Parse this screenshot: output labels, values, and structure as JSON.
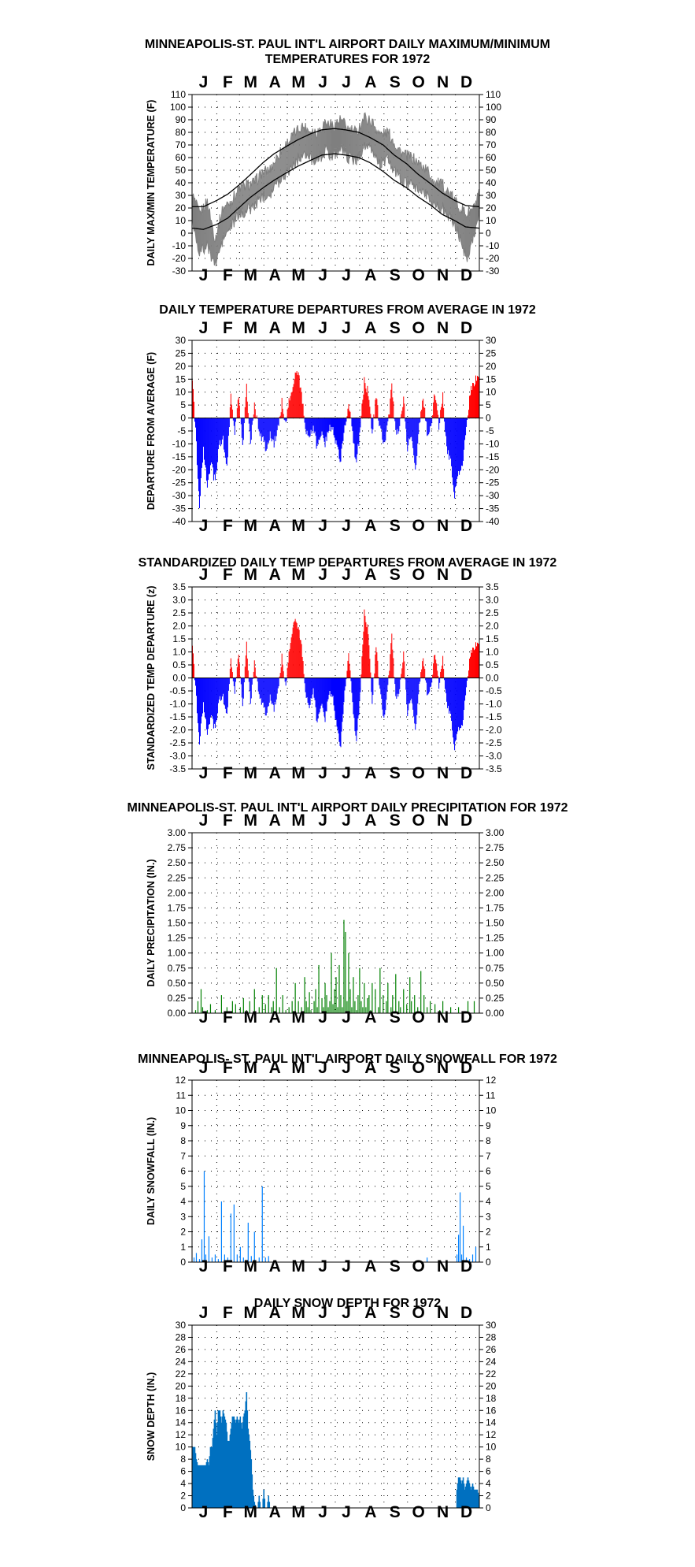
{
  "colors": {
    "temp_series": "#7f7f7f",
    "normal_line": "#000000",
    "positive": "#ff0000",
    "negative": "#0000ff",
    "precip": "#008000",
    "snowfall": "#0080ff",
    "snowdepth": "#0070c0",
    "grid": "#000000"
  },
  "months": [
    "J",
    "F",
    "M",
    "A",
    "M",
    "J",
    "J",
    "A",
    "S",
    "O",
    "N",
    "D"
  ],
  "chart_data": [
    {
      "id": "temps",
      "type": "line",
      "title": "MINNEAPOLIS-ST. PAUL INT'L AIRPORT DAILY MAXIMUM/MINIMUM\nTEMPERATURES FOR 1972",
      "ylabel": "DAILY MAX/MIN TEMPERATURE (F)",
      "ylim": [
        -30,
        110
      ],
      "ystep": 10,
      "decimals": 0,
      "grid": true,
      "x": "day of year 1972 (1-366)",
      "series": [
        {
          "role": "daily max/min",
          "key_days": [
            1,
            10,
            20,
            30,
            40,
            50,
            60,
            70,
            80,
            90,
            100,
            110,
            120,
            130,
            140,
            150,
            160,
            170,
            180,
            190,
            200,
            210,
            220,
            230,
            240,
            250,
            260,
            270,
            280,
            290,
            300,
            310,
            320,
            330,
            340,
            350,
            360,
            366
          ],
          "max": [
            30,
            15,
            25,
            -5,
            20,
            25,
            35,
            38,
            40,
            48,
            50,
            62,
            70,
            78,
            85,
            82,
            80,
            88,
            85,
            90,
            82,
            80,
            92,
            88,
            78,
            80,
            70,
            62,
            60,
            55,
            50,
            40,
            38,
            30,
            22,
            15,
            20,
            30
          ],
          "min": [
            10,
            -15,
            -10,
            -25,
            -5,
            5,
            15,
            18,
            22,
            30,
            32,
            40,
            48,
            55,
            62,
            60,
            58,
            65,
            62,
            68,
            60,
            58,
            70,
            65,
            55,
            58,
            48,
            40,
            38,
            35,
            30,
            22,
            20,
            12,
            0,
            -20,
            0,
            15
          ]
        },
        {
          "role": "normal max",
          "key_days": [
            1,
            15,
            32,
            46,
            60,
            74,
            91,
            105,
            121,
            135,
            152,
            166,
            182,
            196,
            213,
            227,
            244,
            258,
            274,
            288,
            305,
            319,
            335,
            349,
            366
          ],
          "values": [
            21,
            21,
            26,
            31,
            38,
            46,
            56,
            63,
            69,
            74,
            79,
            82,
            83,
            82,
            80,
            76,
            70,
            62,
            55,
            47,
            39,
            32,
            26,
            22,
            21
          ]
        },
        {
          "role": "normal min",
          "key_days": [
            1,
            15,
            32,
            46,
            60,
            74,
            91,
            105,
            121,
            135,
            152,
            166,
            182,
            196,
            213,
            227,
            244,
            258,
            274,
            288,
            305,
            319,
            335,
            349,
            366
          ],
          "values": [
            4,
            3,
            7,
            12,
            20,
            28,
            36,
            42,
            48,
            53,
            58,
            62,
            63,
            62,
            60,
            56,
            49,
            42,
            36,
            29,
            22,
            15,
            10,
            5,
            4
          ]
        }
      ]
    },
    {
      "id": "dep",
      "type": "bar",
      "title": "DAILY TEMPERATURE DEPARTURES FROM AVERAGE IN 1972",
      "ylabel": "DEPARTURE FROM AVERAGE (F)",
      "ylim": [
        -40,
        30
      ],
      "ystep": 5,
      "decimals": 0,
      "grid": true,
      "key_days": [
        1,
        5,
        10,
        15,
        20,
        25,
        30,
        35,
        40,
        45,
        50,
        55,
        60,
        65,
        70,
        75,
        80,
        85,
        90,
        95,
        100,
        105,
        110,
        115,
        120,
        125,
        130,
        135,
        140,
        145,
        150,
        155,
        160,
        165,
        170,
        175,
        180,
        185,
        190,
        195,
        200,
        205,
        210,
        215,
        220,
        225,
        230,
        235,
        240,
        245,
        250,
        255,
        260,
        265,
        270,
        275,
        280,
        285,
        290,
        295,
        300,
        305,
        310,
        315,
        320,
        325,
        330,
        335,
        340,
        345,
        350,
        355,
        360,
        366
      ],
      "values": [
        14,
        -5,
        -34,
        -12,
        -27,
        -18,
        -25,
        -10,
        -8,
        -20,
        10,
        -5,
        8,
        -12,
        12,
        -10,
        5,
        -4,
        -8,
        -12,
        -6,
        -10,
        -4,
        6,
        -3,
        8,
        14,
        18,
        10,
        -5,
        -8,
        -3,
        -12,
        -6,
        -10,
        -3,
        -5,
        -12,
        -16,
        -3,
        6,
        -6,
        -18,
        -3,
        14,
        10,
        -6,
        8,
        -4,
        -10,
        -3,
        12,
        -6,
        -4,
        8,
        -12,
        -6,
        -20,
        -3,
        8,
        -6,
        -4,
        10,
        -3,
        8,
        -12,
        -16,
        -30,
        -22,
        -18,
        -4,
        10,
        14,
        17
      ]
    },
    {
      "id": "zdep",
      "type": "bar",
      "title": "STANDARDIZED DAILY TEMP DEPARTURES FROM AVERAGE IN 1972",
      "ylabel": "STANDARDIZED TEMP DEPARTURE (z)",
      "ylim": [
        -3.5,
        3.5
      ],
      "ystep": 0.5,
      "decimals": 1,
      "grid": true,
      "key_days": [
        1,
        5,
        10,
        15,
        20,
        25,
        30,
        35,
        40,
        45,
        50,
        55,
        60,
        65,
        70,
        75,
        80,
        85,
        90,
        95,
        100,
        105,
        110,
        115,
        120,
        125,
        130,
        135,
        140,
        145,
        150,
        155,
        160,
        165,
        170,
        175,
        180,
        185,
        190,
        195,
        200,
        205,
        210,
        215,
        220,
        225,
        230,
        235,
        240,
        245,
        250,
        255,
        260,
        265,
        270,
        275,
        280,
        285,
        290,
        295,
        300,
        305,
        310,
        315,
        320,
        325,
        330,
        335,
        340,
        345,
        350,
        355,
        360,
        366
      ],
      "values": [
        1.2,
        -0.4,
        -2.5,
        -1.0,
        -2.2,
        -1.5,
        -2.0,
        -0.8,
        -0.7,
        -1.5,
        0.8,
        -0.5,
        0.9,
        -1.2,
        1.3,
        -1.0,
        0.6,
        -0.5,
        -1.0,
        -1.4,
        -0.7,
        -1.2,
        -0.5,
        0.8,
        -0.4,
        1.2,
        2.2,
        2.0,
        1.3,
        -0.6,
        -1.2,
        -0.4,
        -1.8,
        -1.0,
        -1.6,
        -0.5,
        -0.8,
        -2.0,
        -2.6,
        -0.5,
        1.0,
        -1.0,
        -2.5,
        -0.5,
        2.5,
        1.8,
        -1.0,
        1.2,
        -0.5,
        -1.6,
        -0.4,
        1.6,
        -0.8,
        -0.5,
        1.0,
        -1.4,
        -0.7,
        -2.0,
        -0.3,
        0.8,
        -0.6,
        -0.4,
        1.0,
        -0.3,
        0.7,
        -1.0,
        -1.4,
        -2.7,
        -2.0,
        -1.8,
        -0.4,
        0.9,
        1.2,
        1.4
      ]
    },
    {
      "id": "precip",
      "type": "bar",
      "title": "MINNEAPOLIS-ST. PAUL INT'L AIRPORT DAILY PRECIPITATION FOR 1972",
      "ylabel": "DAILY PRECIPITATION (IN.)",
      "ylim": [
        0,
        3
      ],
      "ystep": 0.25,
      "decimals": 2,
      "grid": true,
      "days": [
        5,
        8,
        12,
        14,
        20,
        24,
        30,
        38,
        45,
        52,
        56,
        62,
        66,
        70,
        74,
        80,
        86,
        90,
        94,
        98,
        102,
        104,
        108,
        112,
        116,
        120,
        124,
        128,
        132,
        136,
        140,
        144,
        146,
        148,
        150,
        152,
        156,
        158,
        160,
        162,
        166,
        168,
        170,
        172,
        174,
        176,
        178,
        180,
        182,
        184,
        186,
        188,
        190,
        192,
        194,
        196,
        198,
        200,
        202,
        204,
        206,
        208,
        210,
        212,
        214,
        216,
        218,
        220,
        222,
        224,
        226,
        228,
        230,
        234,
        238,
        240,
        244,
        248,
        250,
        254,
        256,
        260,
        264,
        266,
        270,
        274,
        278,
        280,
        284,
        288,
        292,
        296,
        300,
        304,
        310,
        316,
        320,
        330,
        340,
        352,
        360
      ],
      "values": [
        0.05,
        0.2,
        0.4,
        0.1,
        0.05,
        0.15,
        0.05,
        0.3,
        0.1,
        0.2,
        0.15,
        0.1,
        0.25,
        0.05,
        0.2,
        0.4,
        0.1,
        0.3,
        0.15,
        0.3,
        0.1,
        0.2,
        0.75,
        0.1,
        0.3,
        0.05,
        0.1,
        0.2,
        0.5,
        0.2,
        0.1,
        0.6,
        0.2,
        0.1,
        0.35,
        0.05,
        0.2,
        0.4,
        0.1,
        0.8,
        0.25,
        0.1,
        0.5,
        0.3,
        0.1,
        0.2,
        1.0,
        0.15,
        0.4,
        0.6,
        0.1,
        0.8,
        0.3,
        0.1,
        1.55,
        1.35,
        0.2,
        1.0,
        0.4,
        0.1,
        0.6,
        0.2,
        0.05,
        0.3,
        0.75,
        0.2,
        0.1,
        0.5,
        0.1,
        0.25,
        0.3,
        0.05,
        0.5,
        0.4,
        0.1,
        0.75,
        0.3,
        0.2,
        0.5,
        0.1,
        0.3,
        0.65,
        0.2,
        0.1,
        0.4,
        0.15,
        0.6,
        0.2,
        0.3,
        0.1,
        0.7,
        0.3,
        0.1,
        0.2,
        0.15,
        0.05,
        0.2,
        0.1,
        0.1,
        0.2,
        0.2
      ]
    },
    {
      "id": "snow",
      "type": "bar",
      "title": "MINNEAPOLIS- ST. PAUL INT'L AIRPORT DAILY SNOWFALL FOR 1972",
      "ylabel": "DAILY SNOWFALL (IN.)",
      "ylim": [
        0,
        12
      ],
      "ystep": 1,
      "decimals": 0,
      "grid": true,
      "days": [
        3,
        6,
        10,
        13,
        16,
        18,
        22,
        26,
        30,
        34,
        38,
        42,
        46,
        50,
        54,
        58,
        62,
        66,
        72,
        76,
        80,
        86,
        90,
        94,
        98,
        300,
        338,
        340,
        342,
        344,
        346,
        350,
        354,
        358,
        362
      ],
      "values": [
        0.3,
        0.6,
        0.2,
        1.5,
        6.0,
        0.5,
        1.7,
        0.3,
        0.5,
        0.2,
        4.0,
        0.5,
        0.3,
        3.2,
        3.8,
        0.5,
        1.0,
        0.3,
        2.6,
        0.4,
        2.0,
        0.3,
        5.0,
        0.3,
        0.4,
        0.3,
        0.5,
        1.8,
        4.6,
        0.5,
        2.4,
        0.3,
        0.2,
        0.5,
        1.0
      ]
    },
    {
      "id": "depth",
      "type": "area",
      "title": "DAILY SNOW DEPTH FOR 1972",
      "ylabel": "SNOW DEPTH (IN.)",
      "ylim": [
        0,
        30
      ],
      "ystep": 2,
      "decimals": 0,
      "grid": true,
      "key_days": [
        1,
        4,
        6,
        8,
        10,
        14,
        16,
        18,
        20,
        22,
        24,
        26,
        28,
        30,
        32,
        34,
        36,
        38,
        40,
        42,
        44,
        46,
        48,
        50,
        52,
        54,
        56,
        58,
        60,
        62,
        64,
        66,
        68,
        70,
        72,
        74,
        76,
        78,
        80,
        82,
        84,
        86,
        88,
        90,
        92,
        94,
        96,
        98,
        100,
        101,
        335,
        337,
        338,
        340,
        342,
        344,
        346,
        348,
        350,
        352,
        354,
        356,
        358,
        360,
        362,
        364,
        366
      ],
      "values": [
        10,
        10,
        8,
        7,
        7,
        7,
        7,
        7,
        8,
        7,
        10,
        10,
        13,
        16,
        12,
        16,
        16,
        14,
        16,
        15,
        14,
        11,
        11,
        13,
        15,
        15,
        14,
        15,
        14,
        15,
        13,
        15,
        16,
        19,
        13,
        11,
        8,
        3,
        1,
        0,
        0,
        2,
        0,
        0,
        3,
        0,
        0,
        2,
        0,
        0,
        0,
        0,
        3,
        5,
        5,
        4,
        5,
        3,
        4,
        5,
        4,
        3,
        4,
        3,
        3,
        3,
        2
      ]
    }
  ]
}
